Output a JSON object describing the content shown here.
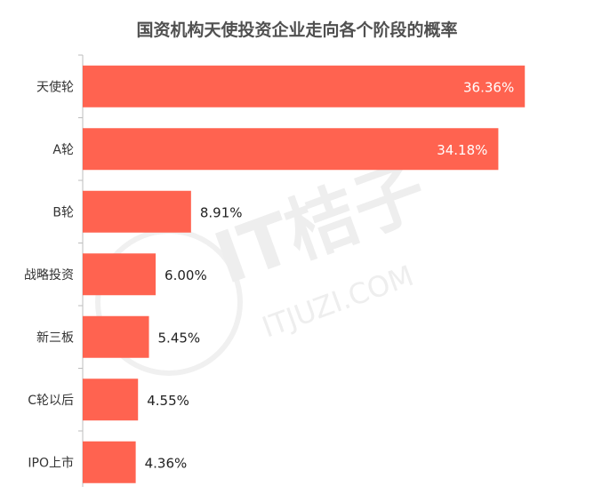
{
  "chart_data": {
    "type": "bar",
    "orientation": "horizontal",
    "title": "国资机构天使投资企业走向各个阶段的概率",
    "categories": [
      "天使轮",
      "A轮",
      "B轮",
      "战略投资",
      "新三板",
      "C轮以后",
      "IPO上市"
    ],
    "values": [
      36.36,
      34.18,
      8.91,
      6.0,
      5.45,
      4.55,
      4.36
    ],
    "value_labels": [
      "36.36%",
      "34.18%",
      "8.91%",
      "6.00%",
      "5.45%",
      "4.55%",
      "4.36%"
    ],
    "xlim": [
      0,
      40
    ],
    "bar_color": "#FF6350",
    "grid": false,
    "legend": "none"
  },
  "watermark": {
    "brand": "IT桔子",
    "url": "ITJUZI.COM"
  }
}
